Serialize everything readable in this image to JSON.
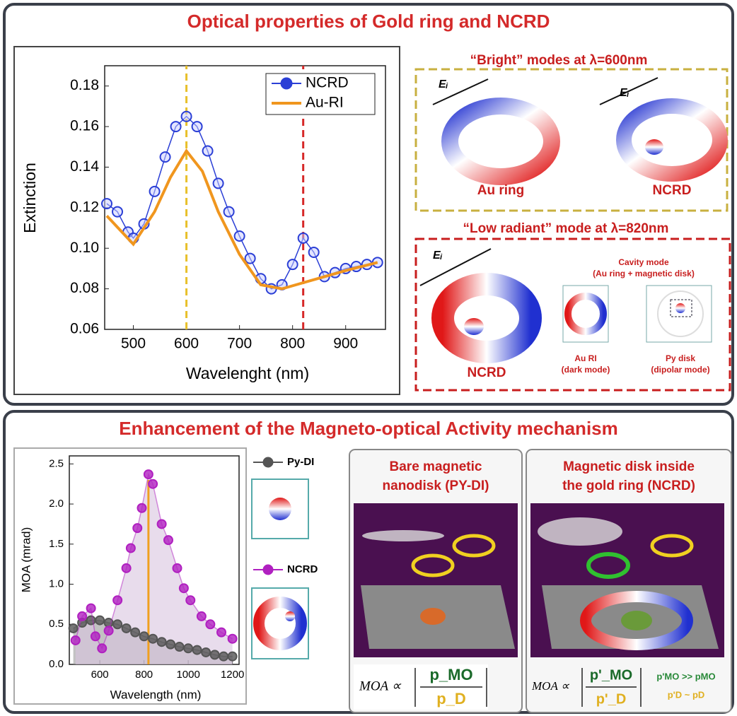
{
  "chart_data": [
    {
      "type": "line",
      "x_label": "Wavelenght  (nm)",
      "y_label": "Extinction",
      "xlim": [
        446,
        975
      ],
      "ylim": [
        0.06,
        0.19
      ],
      "xticks": [
        500,
        600,
        700,
        800,
        900
      ],
      "yticks": [
        0.06,
        0.08,
        {
          "value": 0.1,
          "label": "0.10"
        },
        0.12,
        0.14,
        0.16,
        0.18
      ],
      "series": [
        {
          "name": "NCRD",
          "color": "#2b3fd6",
          "marker": "circle",
          "x": [
            450,
            470,
            490,
            500,
            520,
            540,
            560,
            580,
            600,
            620,
            640,
            660,
            680,
            700,
            720,
            740,
            760,
            780,
            800,
            820,
            840,
            860,
            880,
            900,
            920,
            940,
            960
          ],
          "values": [
            0.122,
            0.118,
            0.108,
            0.105,
            0.112,
            0.128,
            0.145,
            0.16,
            0.165,
            0.16,
            0.148,
            0.132,
            0.118,
            0.106,
            0.095,
            0.085,
            0.08,
            0.082,
            0.092,
            0.105,
            0.098,
            0.086,
            0.088,
            0.09,
            0.091,
            0.092,
            0.093
          ]
        },
        {
          "name": "Au-RI",
          "color": "#f0961e",
          "marker": "none",
          "x": [
            450,
            500,
            540,
            570,
            600,
            630,
            660,
            700,
            740,
            780,
            820,
            860,
            900,
            960
          ],
          "values": [
            0.116,
            0.102,
            0.118,
            0.135,
            0.148,
            0.138,
            0.118,
            0.097,
            0.082,
            0.08,
            0.083,
            0.086,
            0.089,
            0.093
          ]
        }
      ],
      "reference_lines": [
        {
          "x": 600,
          "color": "#e8c02a",
          "dash": true
        },
        {
          "x": 820,
          "color": "#d62828",
          "dash": true
        }
      ]
    },
    {
      "type": "line",
      "x_label": "Wavelength (nm)",
      "y_label": "MOA (mrad)",
      "xlim": [
        462,
        1230
      ],
      "ylim": [
        0,
        2.6
      ],
      "xticks": [
        600,
        800,
        1000,
        1200
      ],
      "yticks": [
        {
          "value": 0,
          "label": "0.0"
        },
        0.5,
        {
          "value": 1,
          "label": "1.0"
        },
        1.5,
        {
          "value": 2,
          "label": "2.0"
        },
        2.5
      ],
      "series": [
        {
          "name": "Py-DI",
          "color": "#555555",
          "marker": "circle",
          "area": "#9a9a9a",
          "x": [
            480,
            520,
            560,
            600,
            640,
            680,
            720,
            760,
            800,
            840,
            880,
            920,
            960,
            1000,
            1040,
            1080,
            1120,
            1160,
            1200
          ],
          "values": [
            0.45,
            0.52,
            0.55,
            0.55,
            0.52,
            0.5,
            0.45,
            0.4,
            0.35,
            0.32,
            0.28,
            0.25,
            0.22,
            0.2,
            0.18,
            0.15,
            0.12,
            0.1,
            0.1
          ]
        },
        {
          "name": "NCRD",
          "color": "#b020c0",
          "marker": "circle",
          "area": "#d9c4df",
          "x": [
            490,
            520,
            560,
            580,
            610,
            640,
            680,
            720,
            740,
            770,
            790,
            820,
            840,
            880,
            910,
            950,
            980,
            1010,
            1060,
            1100,
            1150,
            1200
          ],
          "values": [
            0.3,
            0.6,
            0.7,
            0.35,
            0.2,
            0.42,
            0.8,
            1.2,
            1.45,
            1.7,
            1.95,
            2.37,
            2.25,
            1.75,
            1.55,
            1.2,
            0.95,
            0.8,
            0.6,
            0.5,
            0.4,
            0.32
          ]
        }
      ],
      "reference_lines": [
        {
          "x": 820,
          "y": 2.3,
          "color": "#f0a020",
          "dash": false
        }
      ]
    }
  ],
  "top_panel": {
    "title": "Optical properties of Gold ring and NCRD",
    "bright_heading": "“Bright” modes at λ=600nm",
    "bright_labels": [
      "Au ring",
      "NCRD"
    ],
    "field": "Eᵢ",
    "low_heading": "“Low radiant” mode at λ=820nm",
    "low_label": "NCRD",
    "cavity_title": "Cavity mode",
    "cavity_subtitle": "(Au ring + magnetic disk)",
    "insets": [
      [
        "Au RI",
        "(dark mode)"
      ],
      [
        "Py disk",
        "(dipolar mode)"
      ]
    ]
  },
  "bottom_panel": {
    "title": "Enhancement of the Magneto-optical Activity mechanism",
    "panels": [
      {
        "title": [
          "Bare magnetic",
          "nanodisk (PY-DI)"
        ],
        "formula": "MOA ∝",
        "numerator": "p_MO",
        "denominator": "p_D"
      },
      {
        "title": [
          "Magnetic disk inside",
          "the gold ring (NCRD)"
        ],
        "formula": "MOA ∝",
        "numerator": "p'_MO",
        "denominator": "p'_D",
        "notes": [
          "p'MO >> pMO",
          "p'D ~ pD"
        ]
      }
    ]
  }
}
